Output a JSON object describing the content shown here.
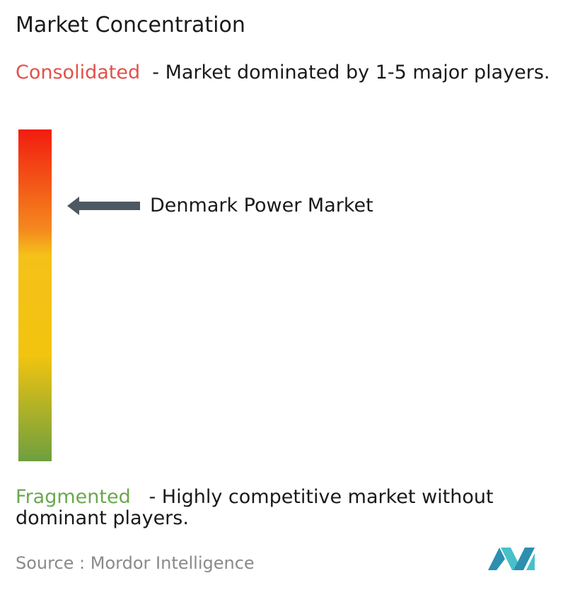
{
  "title": "Market Concentration",
  "consolidated": {
    "label": "Consolidated",
    "description": "- Market dominated by 1-5 major players."
  },
  "market": "Denmark Power Market",
  "fragmented": {
    "label": "Fragmented",
    "description": "- Highly competitive market without dominant players."
  },
  "source": "Source : Mordor Intelligence"
}
